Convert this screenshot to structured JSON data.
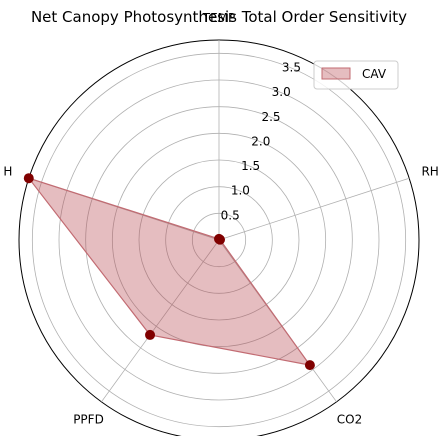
{
  "chart_data": {
    "type": "radar",
    "title": "Net Canopy Photosynthesis Total Order Sensitivity",
    "axes": [
      "TEMP",
      "RH",
      "CO2",
      "PPFD",
      "H"
    ],
    "r_ticks": [
      "0.5",
      "1.0",
      "1.5",
      "2.0",
      "2.5",
      "3.0",
      "3.5"
    ],
    "r_tick_values": [
      0.5,
      1.0,
      1.5,
      2.0,
      2.5,
      3.0,
      3.5
    ],
    "rlim": [
      0,
      3.75
    ],
    "grid": true,
    "legend_position": "top-right",
    "series": [
      {
        "name": "CAV",
        "values": [
          0.02,
          0.02,
          2.9,
          2.2,
          3.75
        ],
        "fill_color": "#b5434b",
        "fill_opacity": 0.35,
        "line_color": "#c26b72",
        "marker_color": "#800000"
      }
    ]
  },
  "colors": {
    "grid": "#b0b0b0",
    "outer_circle": "#000000",
    "text": "#000000"
  }
}
